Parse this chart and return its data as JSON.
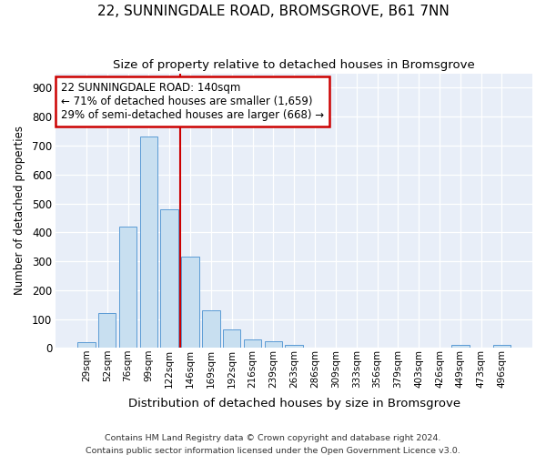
{
  "title": "22, SUNNINGDALE ROAD, BROMSGROVE, B61 7NN",
  "subtitle": "Size of property relative to detached houses in Bromsgrove",
  "xlabel": "Distribution of detached houses by size in Bromsgrove",
  "ylabel": "Number of detached properties",
  "footer_line1": "Contains HM Land Registry data © Crown copyright and database right 2024.",
  "footer_line2": "Contains public sector information licensed under the Open Government Licence v3.0.",
  "annotation_title": "22 SUNNINGDALE ROAD: 140sqm",
  "annotation_line2": "← 71% of detached houses are smaller (1,659)",
  "annotation_line3": "29% of semi-detached houses are larger (668) →",
  "bar_color": "#c8dff0",
  "bar_edge_color": "#5b9bd5",
  "vline_color": "#cc0000",
  "bg_color": "#e8eef8",
  "grid_color": "#ffffff",
  "categories": [
    "29sqm",
    "52sqm",
    "76sqm",
    "99sqm",
    "122sqm",
    "146sqm",
    "169sqm",
    "192sqm",
    "216sqm",
    "239sqm",
    "263sqm",
    "286sqm",
    "309sqm",
    "333sqm",
    "356sqm",
    "379sqm",
    "403sqm",
    "426sqm",
    "449sqm",
    "473sqm",
    "496sqm"
  ],
  "values": [
    20,
    122,
    420,
    730,
    480,
    315,
    130,
    65,
    30,
    22,
    10,
    0,
    0,
    0,
    0,
    0,
    0,
    0,
    10,
    0,
    10
  ],
  "ylim": [
    0,
    950
  ],
  "yticks": [
    0,
    100,
    200,
    300,
    400,
    500,
    600,
    700,
    800,
    900
  ],
  "vline_x": 4.5,
  "figsize": [
    6.0,
    5.0
  ],
  "dpi": 100
}
